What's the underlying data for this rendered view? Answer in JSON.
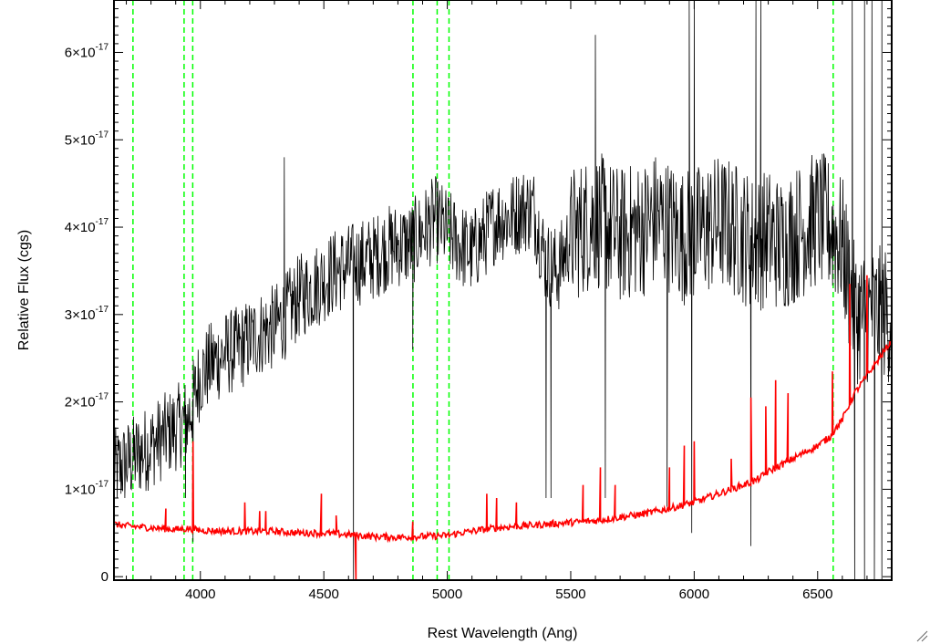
{
  "chart_data": {
    "type": "line",
    "title": "",
    "xlabel": "Rest Wavelength (Ang)",
    "ylabel": "Relative Flux (cgs)",
    "xlim": [
      3650,
      6800
    ],
    "ylim": [
      -4e-19,
      6.6e-17
    ],
    "x_ticks": [
      {
        "value": 4000,
        "label": "4000"
      },
      {
        "value": 4500,
        "label": "4500"
      },
      {
        "value": 5000,
        "label": "5000"
      },
      {
        "value": 5500,
        "label": "5500"
      },
      {
        "value": 6000,
        "label": "6000"
      },
      {
        "value": 6500,
        "label": "6500"
      }
    ],
    "y_ticks": [
      {
        "value": 0,
        "mantissa": "0",
        "exponent": ""
      },
      {
        "value": 1e-17,
        "mantissa": "1×10",
        "exponent": "-17"
      },
      {
        "value": 2e-17,
        "mantissa": "2×10",
        "exponent": "-17"
      },
      {
        "value": 3e-17,
        "mantissa": "3×10",
        "exponent": "-17"
      },
      {
        "value": 4e-17,
        "mantissa": "4×10",
        "exponent": "-17"
      },
      {
        "value": 5e-17,
        "mantissa": "5×10",
        "exponent": "-17"
      },
      {
        "value": 6e-17,
        "mantissa": "6×10",
        "exponent": "-17"
      }
    ],
    "vertical_lines": [
      3727,
      3934,
      3969,
      4861,
      4959,
      5007,
      6563
    ],
    "series": [
      {
        "color": "#000000",
        "noise": 5e-18,
        "x": [
          3650,
          3700,
          3750,
          3800,
          3850,
          3900,
          3950,
          4000,
          4050,
          4100,
          4150,
          4200,
          4250,
          4300,
          4350,
          4400,
          4450,
          4500,
          4550,
          4600,
          4650,
          4700,
          4750,
          4800,
          4850,
          4900,
          4950,
          5000,
          5050,
          5100,
          5150,
          5200,
          5250,
          5300,
          5350,
          5400,
          5450,
          5500,
          5550,
          5600,
          5650,
          5700,
          5750,
          5800,
          5850,
          5900,
          5950,
          6000,
          6050,
          6100,
          6150,
          6200,
          6250,
          6300,
          6350,
          6400,
          6450,
          6500,
          6550,
          6600,
          6650,
          6700,
          6750,
          6800
        ],
        "y": [
          1.2e-17,
          1.3e-17,
          1.4e-17,
          1.5e-17,
          1.6e-17,
          1.7e-17,
          1.8e-17,
          2.3e-17,
          2.45e-17,
          2.55e-17,
          2.6e-17,
          2.7e-17,
          2.8e-17,
          2.85e-17,
          3e-17,
          3.2e-17,
          3.3e-17,
          3.4e-17,
          3.5e-17,
          3.55e-17,
          3.6e-17,
          3.65e-17,
          3.75e-17,
          3.8e-17,
          3.8e-17,
          3.95e-17,
          4.1e-17,
          3.95e-17,
          3.8e-17,
          3.7e-17,
          3.9e-17,
          4.1e-17,
          4.1e-17,
          4.2e-17,
          4.2e-17,
          3.6e-17,
          3.5e-17,
          3.9e-17,
          4e-17,
          4.1e-17,
          4e-17,
          3.9e-17,
          3.95e-17,
          4e-17,
          4.1e-17,
          4e-17,
          3.9e-17,
          3.9e-17,
          4e-17,
          4.05e-17,
          4e-17,
          3.9e-17,
          3.8e-17,
          3.9e-17,
          3.8e-17,
          3.9e-17,
          4e-17,
          4.1e-17,
          4e-17,
          3.8e-17,
          3e-17,
          3e-17,
          3e-17,
          3e-17
        ]
      },
      {
        "color": "#ff0000",
        "noise": 4e-19,
        "x": [
          3650,
          3700,
          3800,
          3900,
          3950,
          4000,
          4100,
          4200,
          4300,
          4400,
          4500,
          4600,
          4700,
          4800,
          4900,
          5000,
          5050,
          5100,
          5150,
          5200,
          5300,
          5400,
          5500,
          5600,
          5700,
          5800,
          5900,
          6000,
          6100,
          6200,
          6250,
          6300,
          6400,
          6500,
          6550,
          6600,
          6650,
          6700,
          6750,
          6800
        ],
        "y": [
          6e-18,
          5.8e-18,
          5.6e-18,
          5.4e-18,
          5.5e-18,
          5.3e-18,
          5.2e-18,
          5.2e-18,
          5.2e-18,
          5e-18,
          5e-18,
          4.8e-18,
          4.6e-18,
          4.5e-18,
          4.6e-18,
          4.7e-18,
          5e-18,
          5.2e-18,
          5.4e-18,
          5.6e-18,
          5.8e-18,
          6e-18,
          6.2e-18,
          6.4e-18,
          6.8e-18,
          7.2e-18,
          7.8e-18,
          8.5e-18,
          9.5e-18,
          1.05e-17,
          1.1e-17,
          1.2e-17,
          1.35e-17,
          1.5e-17,
          1.6e-17,
          1.8e-17,
          2.1e-17,
          2.3e-17,
          2.5e-17,
          2.7e-17
        ]
      }
    ],
    "red_spikes": [
      {
        "x": 3860,
        "y": 7.8e-18
      },
      {
        "x": 3970,
        "y": 1.55e-17
      },
      {
        "x": 4180,
        "y": 8.5e-18
      },
      {
        "x": 4240,
        "y": 7.5e-18
      },
      {
        "x": 4265,
        "y": 7.5e-18
      },
      {
        "x": 4490,
        "y": 9.5e-18
      },
      {
        "x": 4550,
        "y": 7e-18
      },
      {
        "x": 4630,
        "y": -6e-19
      },
      {
        "x": 4860,
        "y": 6.3e-18
      },
      {
        "x": 5160,
        "y": 9.5e-18
      },
      {
        "x": 5200,
        "y": 9e-18
      },
      {
        "x": 5280,
        "y": 8.5e-18
      },
      {
        "x": 5550,
        "y": 1.05e-17
      },
      {
        "x": 5620,
        "y": 1.25e-17
      },
      {
        "x": 5680,
        "y": 1.05e-17
      },
      {
        "x": 5900,
        "y": 1.25e-17
      },
      {
        "x": 5960,
        "y": 1.5e-17
      },
      {
        "x": 6000,
        "y": 1.55e-17
      },
      {
        "x": 6150,
        "y": 1.35e-17
      },
      {
        "x": 6230,
        "y": 2.05e-17
      },
      {
        "x": 6290,
        "y": 1.95e-17
      },
      {
        "x": 6330,
        "y": 2.25e-17
      },
      {
        "x": 6380,
        "y": 2.1e-17
      },
      {
        "x": 6560,
        "y": 2.35e-17
      },
      {
        "x": 6630,
        "y": 3.35e-17
      },
      {
        "x": 6700,
        "y": 3.45e-17
      }
    ],
    "black_dips": [
      {
        "x": 3940,
        "y": 9e-18
      },
      {
        "x": 3970,
        "y": 4e-18
      },
      {
        "x": 4620,
        "y": -5e-19
      },
      {
        "x": 4860,
        "y": 2.6e-17
      },
      {
        "x": 5400,
        "y": 9e-18
      },
      {
        "x": 5420,
        "y": 9e-18
      },
      {
        "x": 5640,
        "y": 9e-18
      },
      {
        "x": 5890,
        "y": 8e-18
      },
      {
        "x": 5990,
        "y": 5e-18
      },
      {
        "x": 6230,
        "y": 3.5e-18
      },
      {
        "x": 6650,
        "y": -5e-19
      },
      {
        "x": 6690,
        "y": -5e-19
      },
      {
        "x": 6730,
        "y": -5e-19
      },
      {
        "x": 6760,
        "y": -5e-19
      }
    ],
    "black_peaks": [
      {
        "x": 4340,
        "y": 4.8e-17
      },
      {
        "x": 5600,
        "y": 6.2e-17
      },
      {
        "x": 5980,
        "y": 6.6e-17
      },
      {
        "x": 6000,
        "y": 6.6e-17
      },
      {
        "x": 6250,
        "y": 6.6e-17
      },
      {
        "x": 6270,
        "y": 6.6e-17
      },
      {
        "x": 6640,
        "y": 6.6e-17
      },
      {
        "x": 6690,
        "y": 6.6e-17
      },
      {
        "x": 6720,
        "y": 6.6e-17
      },
      {
        "x": 6760,
        "y": 6.6e-17
      }
    ]
  }
}
